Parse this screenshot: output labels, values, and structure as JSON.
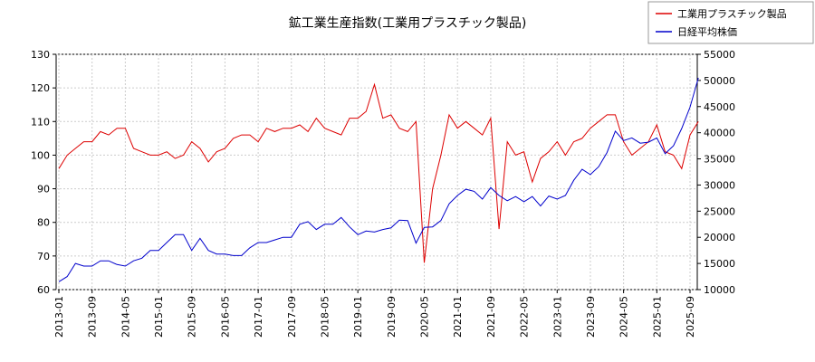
{
  "chart_data": {
    "type": "line",
    "title": "鉱工業生産指数(工業用プラスチック製品)",
    "x": [
      "2013-01",
      "2013-03",
      "2013-05",
      "2013-07",
      "2013-09",
      "2013-11",
      "2014-01",
      "2014-03",
      "2014-05",
      "2014-07",
      "2014-09",
      "2014-11",
      "2015-01",
      "2015-03",
      "2015-05",
      "2015-07",
      "2015-09",
      "2015-11",
      "2016-01",
      "2016-03",
      "2016-05",
      "2016-07",
      "2016-09",
      "2016-11",
      "2017-01",
      "2017-03",
      "2017-05",
      "2017-07",
      "2017-09",
      "2017-11",
      "2018-01",
      "2018-03",
      "2018-05",
      "2018-07",
      "2018-09",
      "2018-11",
      "2019-01",
      "2019-03",
      "2019-05",
      "2019-07",
      "2019-09",
      "2019-11",
      "2020-01",
      "2020-03",
      "2020-05",
      "2020-07",
      "2020-09",
      "2020-11",
      "2021-01",
      "2021-03",
      "2021-05",
      "2021-07",
      "2021-09",
      "2021-11",
      "2022-01",
      "2022-03",
      "2022-05",
      "2022-07",
      "2022-09",
      "2022-11",
      "2023-01",
      "2023-03",
      "2023-05",
      "2023-07",
      "2023-09",
      "2023-11",
      "2024-01",
      "2024-03",
      "2024-05",
      "2024-07",
      "2024-09",
      "2024-11",
      "2025-01",
      "2025-03",
      "2025-05",
      "2025-07",
      "2025-09",
      "2025-11"
    ],
    "series": [
      {
        "name": "工業用プラスチック製品",
        "color": "#dd0000",
        "values": [
          96,
          100,
          102,
          104,
          104,
          107,
          106,
          108,
          108,
          102,
          101,
          100,
          100,
          101,
          99,
          100,
          104,
          102,
          98,
          101,
          102,
          105,
          106,
          106,
          104,
          108,
          107,
          108,
          108,
          109,
          107,
          111,
          108,
          107,
          106,
          111,
          111,
          113,
          121,
          111,
          112,
          108,
          107,
          110,
          68,
          90,
          100,
          112,
          108,
          110,
          108,
          106,
          111,
          78,
          104,
          100,
          101,
          92,
          99,
          101,
          104,
          100,
          104,
          105,
          108,
          110,
          112,
          112,
          104,
          100,
          102,
          104,
          109,
          101,
          100,
          96,
          106,
          110
        ]
      },
      {
        "name": "日経平均株価",
        "color": "#0000cc",
        "axis": "y2",
        "values": [
          11500,
          12500,
          15000,
          14500,
          14500,
          15500,
          15500,
          14800,
          14500,
          15500,
          16000,
          17500,
          17500,
          19000,
          20500,
          20500,
          17500,
          19800,
          17500,
          16800,
          16800,
          16500,
          16500,
          18000,
          19000,
          19000,
          19500,
          20000,
          20000,
          22500,
          23000,
          21500,
          22500,
          22500,
          23800,
          22000,
          20500,
          21200,
          21000,
          21500,
          21800,
          23300,
          23200,
          18900,
          21900,
          22000,
          23200,
          26400,
          28000,
          29200,
          28800,
          27300,
          29500,
          28000,
          27000,
          27800,
          26800,
          27800,
          26000,
          27900,
          27300,
          28000,
          30900,
          33000,
          32000,
          33500,
          36200,
          40300,
          38500,
          39000,
          38000,
          38200,
          39000,
          36000,
          37500,
          40800,
          44900,
          50500
        ]
      }
    ],
    "xticks": [
      "2013-01",
      "2013-09",
      "2014-05",
      "2015-01",
      "2015-09",
      "2016-05",
      "2017-01",
      "2017-09",
      "2018-05",
      "2019-01",
      "2019-09",
      "2020-05",
      "2021-01",
      "2021-09",
      "2022-05",
      "2023-01",
      "2023-09",
      "2024-05",
      "2025-01",
      "2025-09"
    ],
    "ylim": [
      60,
      130
    ],
    "yticks": [
      60,
      70,
      80,
      90,
      100,
      110,
      120,
      130
    ],
    "y2lim": [
      10000,
      55000
    ],
    "y2ticks": [
      10000,
      15000,
      20000,
      25000,
      30000,
      35000,
      40000,
      45000,
      50000,
      55000
    ],
    "grid": true,
    "legend": "top-right"
  }
}
